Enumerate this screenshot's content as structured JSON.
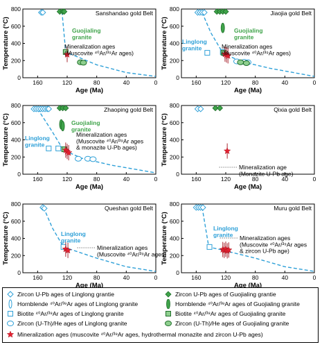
{
  "colors": {
    "linglong": "#2ea0d8",
    "guojialing": "#3fa34a",
    "mineralization": "#e32030",
    "cooling_path": "#2ea0d8",
    "background": "#ffffff",
    "axis": "#000000"
  },
  "axes_text": {
    "ylabel": "Temperature (°C)",
    "xlabel": "Age (Ma)"
  },
  "chart_data": [
    {
      "type": "scatter",
      "title": "Sanshandao gold Belt",
      "xlabel": "Age (Ma)",
      "ylabel": "Temperature (°C)",
      "xlim": [
        180,
        0
      ],
      "ylim": [
        0,
        800
      ],
      "xticks": [
        160,
        120,
        80,
        40,
        0
      ],
      "yticks": [
        0,
        200,
        400,
        600,
        800
      ],
      "annotations": [
        "Guojialing\ngranite",
        "Mineralization ages\n(Muscovite ⁴⁰Ar/³⁹Ar ages)"
      ],
      "series": [
        {
          "key": "gl_zircon",
          "x": [
            155,
            153
          ],
          "y": [
            760,
            760
          ]
        },
        {
          "key": "gj_zircon",
          "x": [
            130,
            126,
            124
          ],
          "y": [
            770,
            770,
            770
          ]
        },
        {
          "key": "gj_biotite",
          "x": [
            122
          ],
          "y": [
            300
          ]
        },
        {
          "key": "gj_he",
          "x": [
            102,
            98
          ],
          "y": [
            180,
            175
          ]
        },
        {
          "key": "mineral",
          "x": [
            120
          ],
          "y": [
            270
          ]
        }
      ],
      "cooling_path": {
        "x": [
          127,
          122,
          80,
          40,
          0
        ],
        "y": [
          770,
          300,
          150,
          60,
          15
        ]
      }
    },
    {
      "type": "scatter",
      "title": "Jiaojia gold Belt",
      "xlabel": "Age (Ma)",
      "ylabel": "Temperature (°C)",
      "xlim": [
        180,
        0
      ],
      "ylim": [
        0,
        800
      ],
      "xticks": [
        160,
        120,
        80,
        40,
        0
      ],
      "yticks": [
        0,
        200,
        400,
        600,
        800
      ],
      "annotations": [
        "Guojialing\ngranite",
        "Linglong\ngranite",
        "Mineralization ages\n(Muscovite ⁴⁰Ar/³⁹Ar ages)"
      ],
      "series": [
        {
          "key": "gl_zircon",
          "x": [
            158,
            155,
            152,
            149
          ],
          "y": [
            760,
            760,
            760,
            760
          ]
        },
        {
          "key": "gj_zircon",
          "x": [
            132,
            128,
            124,
            120
          ],
          "y": [
            770,
            770,
            770,
            770
          ]
        },
        {
          "key": "gj_hornblende",
          "x": [
            124
          ],
          "y": [
            580
          ]
        },
        {
          "key": "gl_biotite",
          "x": [
            145,
            124
          ],
          "y": [
            290,
            300
          ]
        },
        {
          "key": "gj_biotite",
          "x": [
            123
          ],
          "y": [
            290
          ]
        },
        {
          "key": "gl_he",
          "x": [
            105,
            95,
            90
          ],
          "y": [
            190,
            185,
            180
          ]
        },
        {
          "key": "gj_he",
          "x": [
            100,
            92
          ],
          "y": [
            180,
            170
          ]
        },
        {
          "key": "mineral",
          "x": [
            121,
            119,
            117
          ],
          "y": [
            275,
            265,
            255
          ]
        }
      ],
      "cooling_path": {
        "x": [
          152,
          140,
          124,
          100,
          60,
          0
        ],
        "y": [
          760,
          520,
          290,
          190,
          110,
          15
        ]
      }
    },
    {
      "type": "scatter",
      "title": "Zhaoping gold Belt",
      "xlabel": "Age (Ma)",
      "ylabel": "Temperature (°C)",
      "xlim": [
        180,
        0
      ],
      "ylim": [
        0,
        800
      ],
      "xticks": [
        160,
        120,
        80,
        40,
        0
      ],
      "yticks": [
        0,
        200,
        400,
        600,
        800
      ],
      "annotations": [
        "Guojialing\ngranite",
        "Linglong\ngranite",
        "Mineralization ages\n(Muscovite ⁴⁰Ar/³⁹Ar ages\n& monazite U-Pb ages)"
      ],
      "series": [
        {
          "key": "gl_zircon",
          "x": [
            165,
            162,
            159,
            156,
            153,
            150,
            147,
            145
          ],
          "y": [
            760,
            760,
            760,
            760,
            760,
            760,
            760,
            760
          ]
        },
        {
          "key": "gj_zircon",
          "x": [
            130,
            126,
            122
          ],
          "y": [
            770,
            770,
            770
          ]
        },
        {
          "key": "gj_hornblende",
          "x": [
            128,
            126
          ],
          "y": [
            580,
            560
          ]
        },
        {
          "key": "gl_biotite",
          "x": [
            145,
            132
          ],
          "y": [
            300,
            300
          ]
        },
        {
          "key": "gj_biotite",
          "x": [
            124
          ],
          "y": [
            290
          ]
        },
        {
          "key": "gl_he",
          "x": [
            105,
            92,
            85
          ],
          "y": [
            180,
            180,
            175
          ]
        },
        {
          "key": "mineral",
          "x": [
            122,
            120,
            118
          ],
          "y": [
            280,
            265,
            250
          ]
        }
      ],
      "cooling_path": {
        "x": [
          160,
          142,
          125,
          100,
          60,
          0
        ],
        "y": [
          760,
          520,
          280,
          185,
          105,
          15
        ]
      }
    },
    {
      "type": "scatter",
      "title": "Qixia gold Belt",
      "xlabel": "Age (Ma)",
      "ylabel": "Temperature (°C)",
      "xlim": [
        180,
        0
      ],
      "ylim": [
        0,
        800
      ],
      "xticks": [
        160,
        120,
        80,
        40,
        0
      ],
      "yticks": [
        0,
        200,
        400,
        600,
        800
      ],
      "annotations": [
        "Mineralization age\n(Monazite U-Pb age)"
      ],
      "series": [
        {
          "key": "gl_zircon",
          "x": [
            158,
            154
          ],
          "y": [
            760,
            760
          ]
        },
        {
          "key": "gj_zircon",
          "x": [
            134,
            128
          ],
          "y": [
            770,
            770
          ]
        },
        {
          "key": "mineral",
          "x": [
            118
          ],
          "y": [
            270
          ]
        }
      ]
    },
    {
      "type": "scatter",
      "title": "Queshan gold Belt",
      "xlabel": "Age (Ma)",
      "ylabel": "Temperature (°C)",
      "xlim": [
        180,
        0
      ],
      "ylim": [
        0,
        800
      ],
      "xticks": [
        160,
        120,
        80,
        40,
        0
      ],
      "yticks": [
        0,
        200,
        400,
        600,
        800
      ],
      "annotations": [
        "Linglong\ngranite",
        "Mineralization ages\n(Muscovite ⁴⁰Ar/³⁹Ar ages)"
      ],
      "series": [
        {
          "key": "gl_zircon",
          "x": [
            153,
            151
          ],
          "y": [
            760,
            750
          ]
        },
        {
          "key": "gl_biotite",
          "x": [
            125
          ],
          "y": [
            300
          ]
        },
        {
          "key": "mineral",
          "x": [
            122,
            119
          ],
          "y": [
            275,
            260
          ]
        }
      ],
      "cooling_path": {
        "x": [
          152,
          140,
          125,
          80,
          40,
          0
        ],
        "y": [
          760,
          520,
          300,
          170,
          70,
          15
        ]
      }
    },
    {
      "type": "scatter",
      "title": "Muru gold Belt",
      "xlabel": "Age (Ma)",
      "ylabel": "Temperature (°C)",
      "xlim": [
        180,
        0
      ],
      "ylim": [
        0,
        800
      ],
      "xticks": [
        160,
        120,
        80,
        40,
        0
      ],
      "yticks": [
        0,
        200,
        400,
        600,
        800
      ],
      "annotations": [
        "Linglong\ngranite",
        "Mineralization ages\n(Muscovite ⁴⁰Ar/³⁹Ar ages\n& zircon U-Pb age)"
      ],
      "series": [
        {
          "key": "gl_zircon",
          "x": [
            160,
            157,
            154,
            151
          ],
          "y": [
            760,
            760,
            760,
            760
          ]
        },
        {
          "key": "gl_biotite",
          "x": [
            142
          ],
          "y": [
            300
          ]
        },
        {
          "key": "mineral",
          "x": [
            124,
            122,
            120,
            118,
            116
          ],
          "y": [
            270,
            260,
            275,
            255,
            265
          ]
        }
      ],
      "cooling_path": {
        "x": [
          152,
          143,
          125,
          80,
          40,
          0
        ],
        "y": [
          760,
          300,
          265,
          170,
          70,
          15
        ]
      }
    }
  ],
  "legend": [
    {
      "key": "gl_zircon",
      "label": "Zircon U-Pb ages of Linglong grantie"
    },
    {
      "key": "gj_zircon",
      "label": "Zircon U-Pb ages of Guojialing grantie"
    },
    {
      "key": "gl_hornblende",
      "label": "Hornblende ⁴⁰Ar/³⁹Ar ages of Linglong granite"
    },
    {
      "key": "gj_hornblende",
      "label": "Hornblende ⁴⁰Ar/³⁹Ar ages of Guojialing granite"
    },
    {
      "key": "gl_biotite",
      "label": "Biotite ⁴⁰Ar/³⁹Ar ages of Linglong granite"
    },
    {
      "key": "gj_biotite",
      "label": "Biotite ⁴⁰Ar/³⁹Ar ages of Guojialing granite"
    },
    {
      "key": "gl_he",
      "label": "Zircon (U-Th)/He ages of Linglong granite"
    },
    {
      "key": "gj_he",
      "label": "Zircon (U-Th)/He ages of Guojialing granite"
    },
    {
      "key": "mineral",
      "label": "Mineralization ages (muscovite ⁴⁰Ar/³⁹Ar ages, hydrothermal monazite and zircon U-Pb ages)"
    }
  ]
}
